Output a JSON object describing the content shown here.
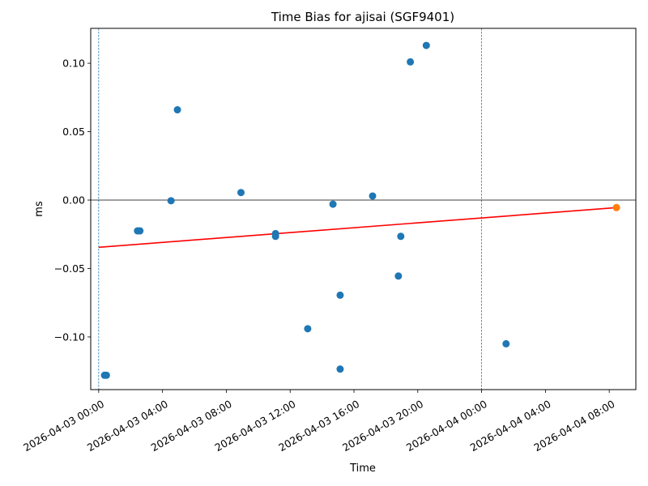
{
  "chart_data": {
    "type": "scatter",
    "title": "Time Bias for ajisai (SGF9401)",
    "xlabel": "Time",
    "ylabel": "ms",
    "x_type": "datetime",
    "xlim": [
      "2026-04-02 23:30",
      "2026-04-04 09:40"
    ],
    "ylim": [
      -0.1385,
      0.1255
    ],
    "grid": false,
    "x_ticks": [
      {
        "value": "2026-04-03 00:00",
        "label": "2026-04-03 00:00"
      },
      {
        "value": "2026-04-03 04:00",
        "label": "2026-04-03 04:00"
      },
      {
        "value": "2026-04-03 08:00",
        "label": "2026-04-03 08:00"
      },
      {
        "value": "2026-04-03 12:00",
        "label": "2026-04-03 12:00"
      },
      {
        "value": "2026-04-03 16:00",
        "label": "2026-04-03 16:00"
      },
      {
        "value": "2026-04-03 20:00",
        "label": "2026-04-03 20:00"
      },
      {
        "value": "2026-04-04 00:00",
        "label": "2026-04-04 00:00"
      },
      {
        "value": "2026-04-04 04:00",
        "label": "2026-04-04 04:00"
      },
      {
        "value": "2026-04-04 08:00",
        "label": "2026-04-04 08:00"
      }
    ],
    "y_ticks": [
      {
        "value": 0.1,
        "label": "0.10"
      },
      {
        "value": 0.05,
        "label": "0.05"
      },
      {
        "value": 0.0,
        "label": "0.00"
      },
      {
        "value": -0.05,
        "label": "−0.05"
      },
      {
        "value": -0.1,
        "label": "−0.10"
      }
    ],
    "vertical_lines": [
      {
        "x": "2026-04-03 00:00",
        "color": "#1f77b4",
        "style": "dashed"
      },
      {
        "x": "2026-04-04 00:00",
        "color": "#1f77b4",
        "style": "dashed"
      }
    ],
    "horizontal_lines": [
      {
        "y": 0.0,
        "color": "#000000"
      }
    ],
    "series": [
      {
        "color": "#1f77b4",
        "points": [
          {
            "x": "2026-04-03 00:22",
            "y": -0.128
          },
          {
            "x": "2026-04-03 00:29",
            "y": -0.128
          },
          {
            "x": "2026-04-03 02:26",
            "y": -0.0225
          },
          {
            "x": "2026-04-03 02:35",
            "y": -0.0225
          },
          {
            "x": "2026-04-03 04:32",
            "y": -0.0005
          },
          {
            "x": "2026-04-03 04:56",
            "y": 0.066
          },
          {
            "x": "2026-04-03 08:55",
            "y": 0.0055
          },
          {
            "x": "2026-04-03 11:05",
            "y": -0.0245
          },
          {
            "x": "2026-04-03 11:05",
            "y": -0.0265
          },
          {
            "x": "2026-04-03 13:06",
            "y": -0.094
          },
          {
            "x": "2026-04-03 14:41",
            "y": -0.003
          },
          {
            "x": "2026-04-03 15:08",
            "y": -0.0695
          },
          {
            "x": "2026-04-03 15:08",
            "y": -0.1235
          },
          {
            "x": "2026-04-03 17:10",
            "y": 0.003
          },
          {
            "x": "2026-04-03 18:47",
            "y": -0.0555
          },
          {
            "x": "2026-04-03 18:56",
            "y": -0.0265
          },
          {
            "x": "2026-04-03 19:32",
            "y": 0.101
          },
          {
            "x": "2026-04-03 20:32",
            "y": 0.113
          },
          {
            "x": "2026-04-04 01:32",
            "y": -0.105
          }
        ]
      },
      {
        "color": "#ff7f0e",
        "points": [
          {
            "x": "2026-04-04 08:27",
            "y": -0.0055
          }
        ]
      }
    ],
    "trend_line": {
      "color": "#ff0000",
      "points": [
        {
          "x": "2026-04-03 00:00",
          "y": -0.0345
        },
        {
          "x": "2026-04-04 08:27",
          "y": -0.0055
        }
      ]
    }
  }
}
